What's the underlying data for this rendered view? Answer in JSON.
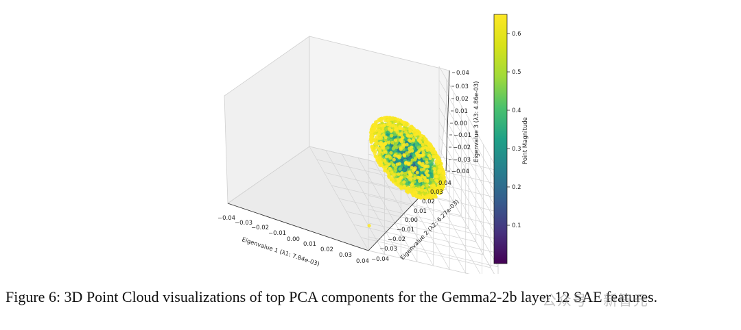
{
  "chart_data": {
    "type": "scatter",
    "subtype": "3d-scatter",
    "grid": true,
    "xlabel": "Eigenvalue 1 (λ1: 7.84e-03)",
    "ylabel": "Eigenvalue 2 (λ2: 6.27e-03)",
    "zlabel": "Eigenvalue 3 (λ3: 4.86e-03)",
    "xlim": [
      -0.04,
      0.04
    ],
    "ylim": [
      -0.04,
      0.04
    ],
    "zlim": [
      -0.04,
      0.04
    ],
    "xticks": [
      "−0.04",
      "−0.03",
      "−0.02",
      "−0.01",
      "0.00",
      "0.01",
      "0.02",
      "0.03",
      "0.04"
    ],
    "yticks": [
      "−0.04",
      "−0.03",
      "−0.02",
      "−0.01",
      "0.00",
      "0.01",
      "0.02",
      "0.03",
      "0.04"
    ],
    "zticks": [
      "−0.04",
      "−0.03",
      "−0.02",
      "−0.01",
      "0.00",
      "0.01",
      "0.02",
      "0.03",
      "0.04"
    ],
    "colorbar": {
      "label": "Point Magnitude",
      "colormap": "viridis",
      "range": [
        0.0,
        0.65
      ],
      "ticks": [
        "0.1",
        "0.2",
        "0.3",
        "0.4",
        "0.5",
        "0.6"
      ],
      "tick_values": [
        0.1,
        0.2,
        0.3,
        0.4,
        0.5,
        0.6
      ]
    },
    "point_cloud": {
      "center": [
        0.005,
        0.0,
        0.005
      ],
      "spread": [
        0.012,
        0.01,
        0.009
      ],
      "magnitude_range": [
        0.15,
        0.65
      ],
      "outliers": [
        {
          "x": 0.03,
          "y": -0.035,
          "z": -0.03,
          "magnitude": 0.65
        }
      ]
    }
  },
  "caption": "Figure 6: 3D Point Cloud visualizations of top PCA components for the Gemma2-2b layer 12 SAE features.",
  "watermark": "公众号 · 新智元"
}
